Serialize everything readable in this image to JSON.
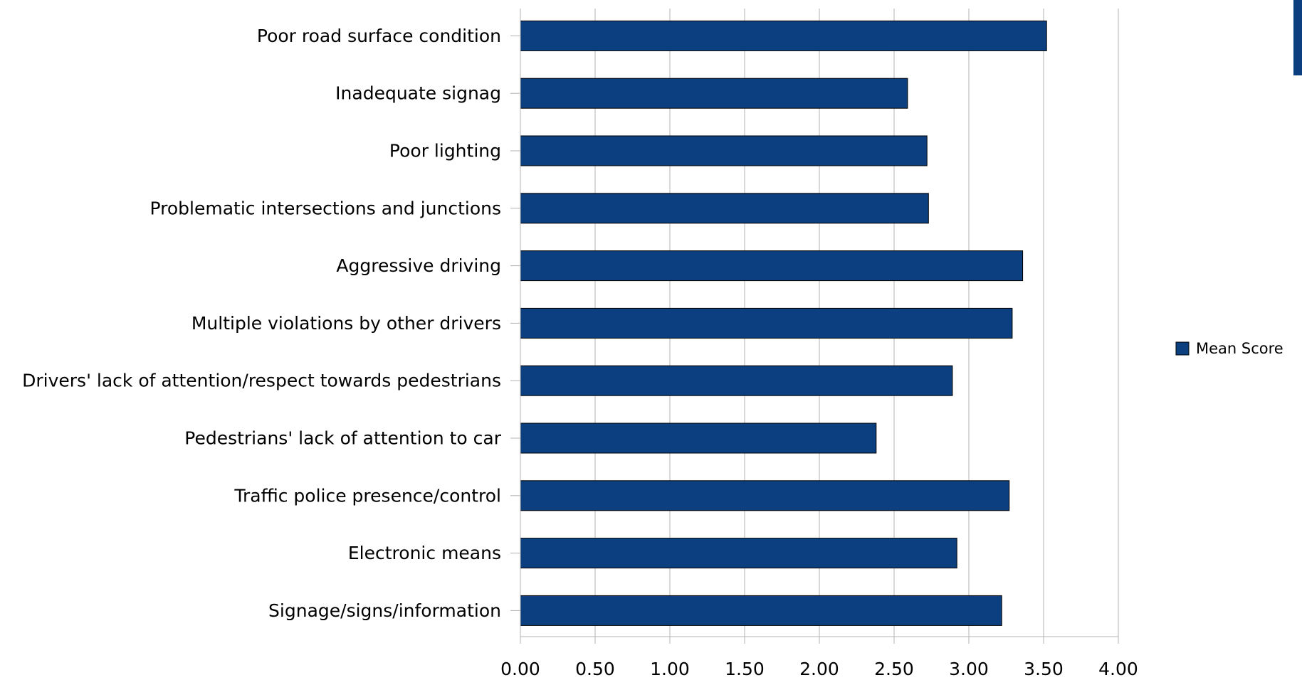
{
  "chart_data": {
    "type": "bar",
    "orientation": "horizontal",
    "categories": [
      "Poor road surface condition",
      "Inadequate signag",
      "Poor lighting",
      "Problematic intersections and junctions",
      "Aggressive driving",
      "Multiple violations by other drivers",
      "Drivers' lack of attention/respect towards pedestrians",
      "Pedestrians' lack of attention to car",
      "Traffic police presence/control",
      "Electronic means",
      "Signage/signs/information"
    ],
    "series": [
      {
        "name": "Mean Score",
        "color": "#0b3f7f",
        "values": [
          3.52,
          2.59,
          2.72,
          2.73,
          3.36,
          3.29,
          2.89,
          2.38,
          3.27,
          2.92,
          3.22
        ]
      }
    ],
    "xlim": [
      0,
      4
    ],
    "xticks": [
      "0.00",
      "0.50",
      "1.00",
      "1.50",
      "2.00",
      "2.50",
      "3.00",
      "3.50",
      "4.00"
    ],
    "grid": true,
    "legend": "right",
    "title": "",
    "xlabel": "",
    "ylabel": ""
  }
}
